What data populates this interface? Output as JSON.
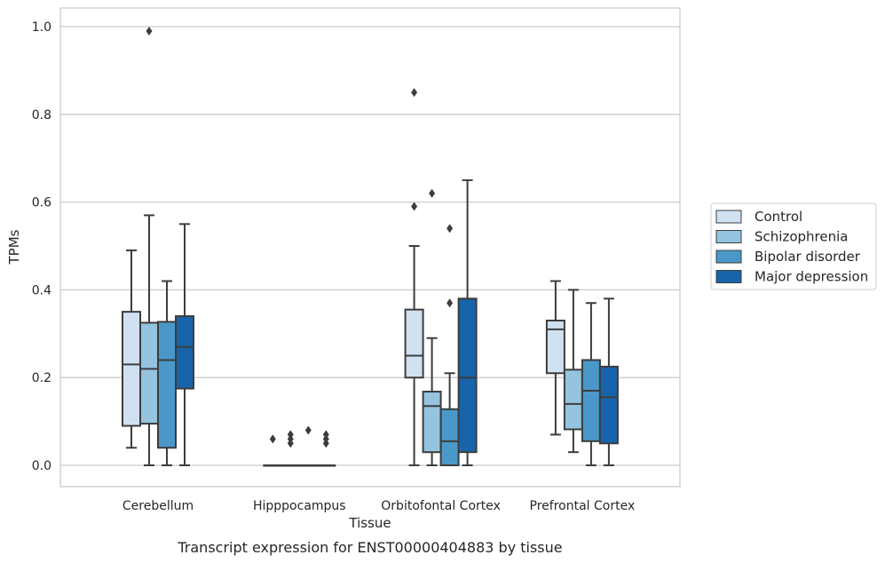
{
  "chart_data": {
    "type": "boxplot",
    "title": "",
    "caption": "Transcript expression for ENST00000404883 by tissue",
    "xlabel": "Tissue",
    "ylabel": "TPMs",
    "ylim": [
      -0.048,
      1.04
    ],
    "yticks": [
      0.0,
      0.2,
      0.4,
      0.6,
      0.8,
      1.0
    ],
    "ytick_labels": [
      "0.0",
      "0.2",
      "0.4",
      "0.6",
      "0.8",
      "1.0"
    ],
    "grid": "horizontal",
    "legend_position": "right",
    "categories": [
      "Cerebellum",
      "Hipppocampus",
      "Orbitofontal Cortex",
      "Prefrontal Cortex"
    ],
    "series": [
      {
        "name": "Control",
        "color": "#d0e1f2",
        "boxes": [
          {
            "whislo": 0.04,
            "q1": 0.09,
            "med": 0.23,
            "q3": 0.35,
            "whishi": 0.49,
            "fliers": []
          },
          {
            "whislo": 0.0,
            "q1": 0.0,
            "med": 0.0,
            "q3": 0.0,
            "whishi": 0.0,
            "fliers": [
              0.06
            ]
          },
          {
            "whislo": 0.0,
            "q1": 0.2,
            "med": 0.25,
            "q3": 0.355,
            "whishi": 0.5,
            "fliers": [
              0.59,
              0.85
            ]
          },
          {
            "whislo": 0.07,
            "q1": 0.21,
            "med": 0.31,
            "q3": 0.33,
            "whishi": 0.42,
            "fliers": []
          }
        ]
      },
      {
        "name": "Schizophrenia",
        "color": "#94c4df",
        "boxes": [
          {
            "whislo": 0.0,
            "q1": 0.095,
            "med": 0.22,
            "q3": 0.325,
            "whishi": 0.57,
            "fliers": [
              0.99
            ]
          },
          {
            "whislo": 0.0,
            "q1": 0.0,
            "med": 0.0,
            "q3": 0.0,
            "whishi": 0.0,
            "fliers": [
              0.05,
              0.06,
              0.07
            ]
          },
          {
            "whislo": 0.0,
            "q1": 0.03,
            "med": 0.135,
            "q3": 0.168,
            "whishi": 0.29,
            "fliers": [
              0.62
            ]
          },
          {
            "whislo": 0.03,
            "q1": 0.082,
            "med": 0.14,
            "q3": 0.218,
            "whishi": 0.4,
            "fliers": []
          }
        ]
      },
      {
        "name": "Bipolar disorder",
        "color": "#4a98c9",
        "boxes": [
          {
            "whislo": 0.0,
            "q1": 0.04,
            "med": 0.24,
            "q3": 0.327,
            "whishi": 0.42,
            "fliers": []
          },
          {
            "whislo": 0.0,
            "q1": 0.0,
            "med": 0.0,
            "q3": 0.0,
            "whishi": 0.0,
            "fliers": [
              0.08
            ]
          },
          {
            "whislo": 0.0,
            "q1": 0.0,
            "med": 0.055,
            "q3": 0.128,
            "whishi": 0.21,
            "fliers": [
              0.37,
              0.54
            ]
          },
          {
            "whislo": 0.0,
            "q1": 0.055,
            "med": 0.17,
            "q3": 0.24,
            "whishi": 0.37,
            "fliers": []
          }
        ]
      },
      {
        "name": "Major depression",
        "color": "#1764ab",
        "boxes": [
          {
            "whislo": 0.0,
            "q1": 0.175,
            "med": 0.27,
            "q3": 0.34,
            "whishi": 0.55,
            "fliers": []
          },
          {
            "whislo": 0.0,
            "q1": 0.0,
            "med": 0.0,
            "q3": 0.0,
            "whishi": 0.0,
            "fliers": [
              0.05,
              0.06,
              0.07
            ]
          },
          {
            "whislo": 0.0,
            "q1": 0.03,
            "med": 0.2,
            "q3": 0.38,
            "whishi": 0.65,
            "fliers": []
          },
          {
            "whislo": 0.0,
            "q1": 0.05,
            "med": 0.155,
            "q3": 0.225,
            "whishi": 0.38,
            "fliers": []
          }
        ]
      }
    ],
    "colors": {
      "grid": "#cccccc",
      "frame": "#cccccc",
      "box_edge": "#3d3d3d",
      "text": "#262626"
    }
  }
}
